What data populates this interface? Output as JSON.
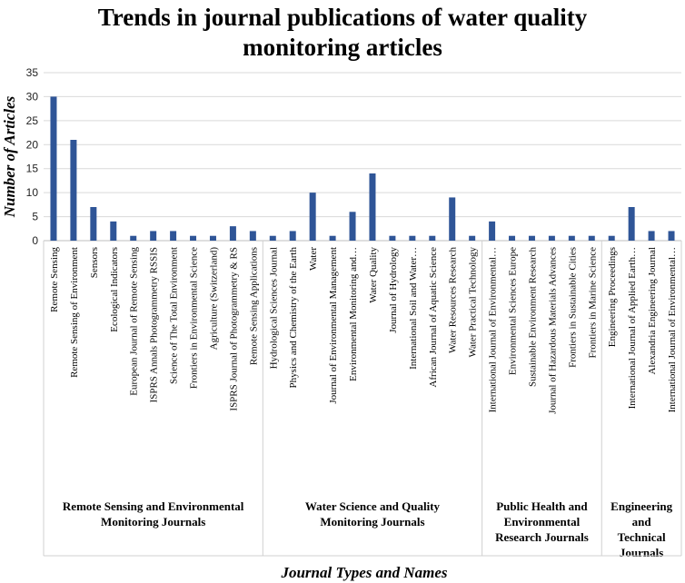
{
  "chart_data": {
    "type": "bar",
    "title_lines": [
      "Trends in journal publications of water quality",
      "monitoring articles"
    ],
    "xlabel": "Journal Types and Names",
    "ylabel": "Number of Articles",
    "ylim": [
      0,
      35
    ],
    "yticks": [
      0,
      5,
      10,
      15,
      20,
      25,
      30,
      35
    ],
    "grid": true,
    "bar_color": "#2f5597",
    "categories": [
      "Remote Sensing",
      "Remote Sensing of Environment",
      "Sensors",
      "Ecological Indicators",
      "European Journal of Remote Sensing",
      "ISPRS Annals  Photogrammetry RSSIS",
      "Science of The Total Environment",
      "Frontiers in Environmental Science",
      "Agriculture (Switzerland)",
      "ISPRS Journal of Photogrammetry & RS",
      "Remote Sensing Applications",
      "Hydrological Sciences Journal",
      "Physics and Chemistry of the Earth",
      "Water",
      "Journal of Environmental Management",
      "Environmental Monitoring and…",
      "Water Quality",
      "Journal of Hydrology",
      "International Soil and Water…",
      "African Journal of Aquatic Science",
      "Water Resources Research",
      "Water Practical Technology",
      "International Journal of Environmental…",
      "Environmental Sciences Europe",
      "Sustainable Environment Research",
      "Journal of Hazardous Materials Advances",
      "Frontiers in Sustainable Cities",
      "Frontiers in Marine Science",
      "Engineering Proceedings",
      "International Journal of Applied Earth…",
      "Alexandria Engineering Journal",
      "International Journal of Environmental…"
    ],
    "values": [
      30,
      21,
      7,
      4,
      1,
      2,
      2,
      1,
      1,
      3,
      2,
      1,
      2,
      10,
      1,
      6,
      14,
      1,
      1,
      1,
      9,
      1,
      4,
      1,
      1,
      1,
      1,
      1,
      1,
      7,
      2,
      2
    ],
    "groups": [
      {
        "lines": [
          "Remote Sensing and Environmental",
          "Monitoring Journals"
        ],
        "start": 0,
        "end": 10
      },
      {
        "lines": [
          "Water Science and Quality",
          "Monitoring Journals"
        ],
        "start": 11,
        "end": 21
      },
      {
        "lines": [
          "Public Health and",
          "Environmental",
          "Research Journals"
        ],
        "start": 22,
        "end": 27
      },
      {
        "lines": [
          "Engineering",
          "and",
          "Technical",
          "Journals"
        ],
        "start": 28,
        "end": 31
      }
    ]
  }
}
